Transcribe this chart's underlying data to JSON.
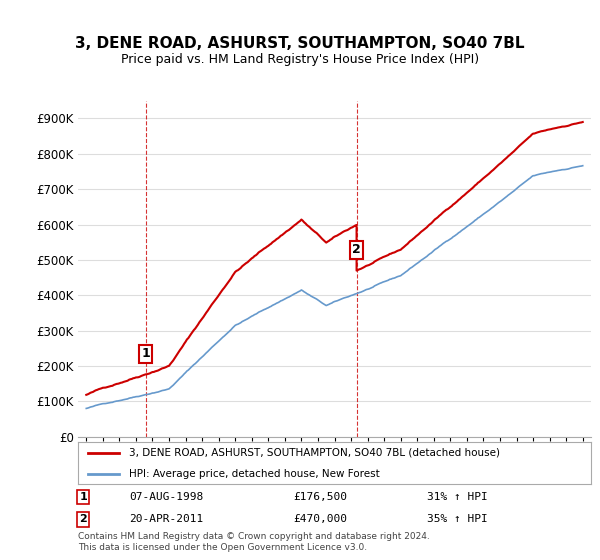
{
  "title": "3, DENE ROAD, ASHURST, SOUTHAMPTON, SO40 7BL",
  "subtitle": "Price paid vs. HM Land Registry's House Price Index (HPI)",
  "ylabel": "",
  "background_color": "#ffffff",
  "grid_color": "#dddddd",
  "sale1_date": "07-AUG-1998",
  "sale1_price": 176500,
  "sale1_label": "1",
  "sale1_hpi_pct": "31% ↑ HPI",
  "sale2_date": "20-APR-2011",
  "sale2_price": 470000,
  "sale2_label": "2",
  "sale2_hpi_pct": "35% ↑ HPI",
  "legend_property": "3, DENE ROAD, ASHURST, SOUTHAMPTON, SO40 7BL (detached house)",
  "legend_hpi": "HPI: Average price, detached house, New Forest",
  "footer": "Contains HM Land Registry data © Crown copyright and database right 2024.\nThis data is licensed under the Open Government Licence v3.0.",
  "red_color": "#cc0000",
  "blue_color": "#6699cc",
  "marker_box_color": "#cc0000",
  "ylim_min": 0,
  "ylim_max": 950000,
  "yticks": [
    0,
    100000,
    200000,
    300000,
    400000,
    500000,
    600000,
    700000,
    800000,
    900000
  ]
}
